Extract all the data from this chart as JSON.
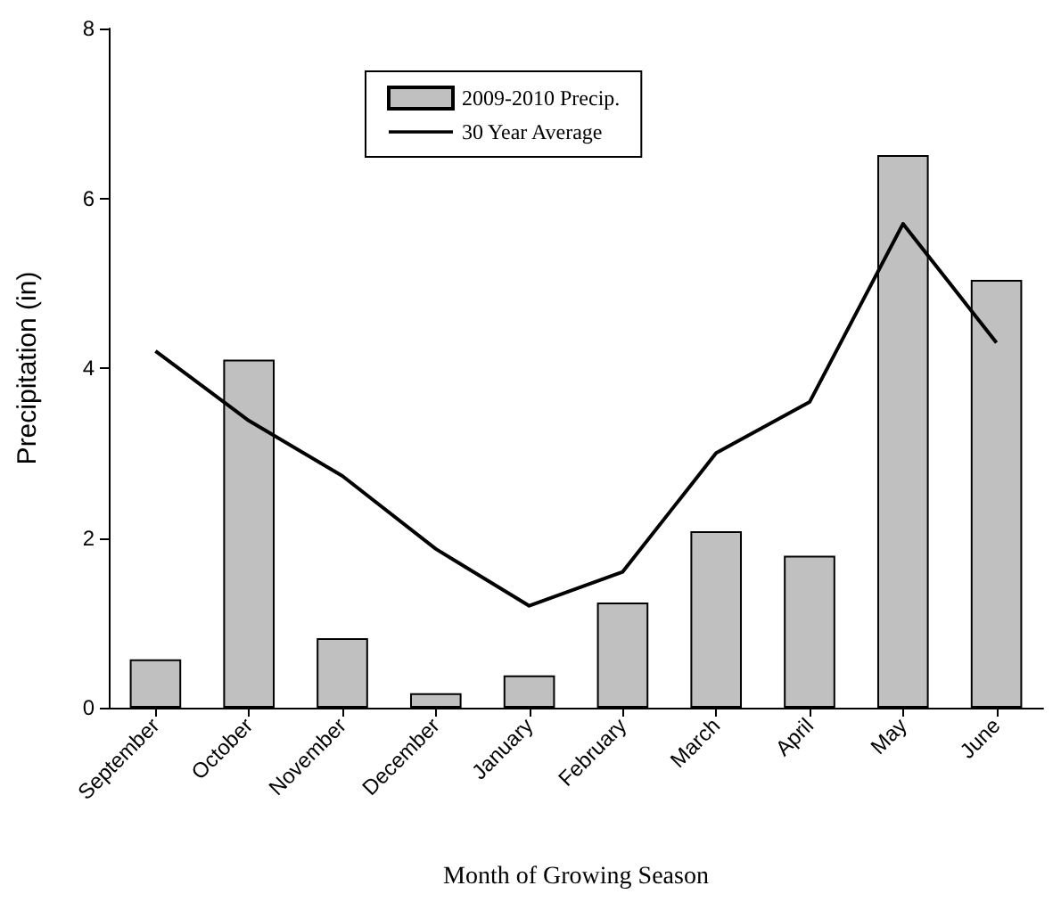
{
  "chart_data": {
    "type": "bar",
    "xlabel": "Month of Growing Season",
    "ylabel": "Precipitation (in)",
    "categories": [
      "September",
      "October",
      "November",
      "December",
      "January",
      "February",
      "March",
      "April",
      "May",
      "June"
    ],
    "series": [
      {
        "name": "2009-2010 Precip.",
        "color": "#c0c0c0",
        "values": [
          0.57,
          4.1,
          0.82,
          0.17,
          0.38,
          1.24,
          2.08,
          1.79,
          6.51,
          5.04
        ]
      },
      {
        "name": "30 Year Average",
        "type": "line",
        "color": "#000000",
        "values": [
          4.2,
          3.38,
          2.73,
          1.87,
          1.2,
          1.6,
          3.0,
          3.6,
          5.7,
          4.3
        ]
      }
    ],
    "ylim": [
      0,
      8
    ],
    "yticks": [
      0,
      2,
      4,
      6,
      8
    ],
    "grid": false,
    "legend": "top",
    "marker": "none",
    "line_style": "solid"
  }
}
